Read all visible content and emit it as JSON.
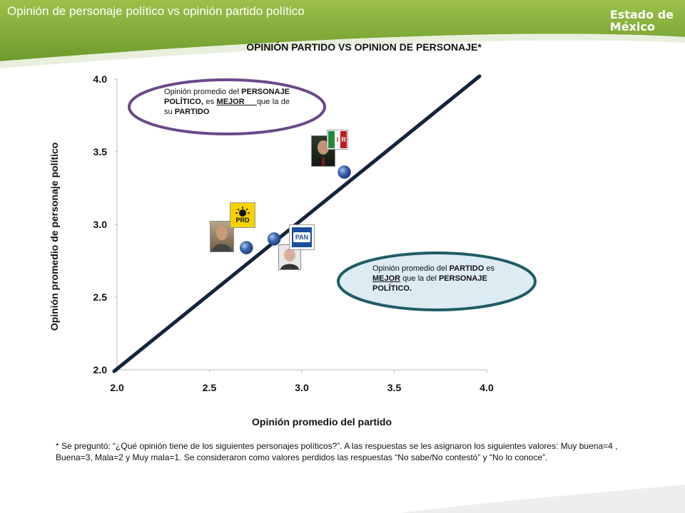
{
  "header": {
    "title": "Opinión de personaje político vs opinión partido político",
    "logo_line1": "Estado de",
    "logo_line2": "México"
  },
  "colors": {
    "header_green": "#8db43a",
    "point_blue": "#3a66b0",
    "line_navy": "#14243e",
    "callout_top_border": "#6b4a8a",
    "callout_bottom_border": "#1f5c66",
    "callout_bottom_fill": "#dcecf2"
  },
  "chart_data": {
    "type": "scatter",
    "title": "OPINIÓN PARTIDO VS OPINION DE PERSONAJE*",
    "xlabel": "Opinión promedio del partido",
    "ylabel": "Opinión promedio de personaje político",
    "xlim": [
      2.0,
      4.0
    ],
    "ylim": [
      2.0,
      4.0
    ],
    "x_ticks": [
      "2.0",
      "2.5",
      "3.0",
      "3.5",
      "4.0"
    ],
    "y_ticks": [
      "2.0",
      "2.5",
      "3.0",
      "3.5",
      "4.0"
    ],
    "grid": false,
    "reference_line": [
      [
        2.0,
        2.0
      ],
      [
        4.0,
        4.0
      ]
    ],
    "points": [
      {
        "x": 2.7,
        "y": 2.84
      },
      {
        "x": 2.85,
        "y": 2.9
      },
      {
        "x": 3.23,
        "y": 3.36
      }
    ]
  },
  "callouts": {
    "top": {
      "t1": "Opinión promedio del ",
      "t2": "PERSONAJE POLÍTICO,",
      "t3": " es ",
      "t4": "MEJOR",
      "t5": "que la de su ",
      "t6": "PARTIDO"
    },
    "bottom": {
      "t1": "Opinión promedio del ",
      "t2": "PARTIDO",
      "t3": " es ",
      "t4": "MEJOR",
      "t5": " que la del ",
      "t6": "PERSONAJE POLÍTICO."
    }
  },
  "party_logos": {
    "prd": "PRD",
    "pan": "PAN",
    "pri_r": "R",
    "pri_i": "I"
  },
  "footnote": "* Se preguntó: “¿Qué opinión tiene de los siguientes personajes políticos?”. A las respuestas se les asignaron los siguientes valores: Muy buena=4 , Buena=3, Mala=2 y Muy mala=1. Se consideraron como valores perdidos las respuestas “No sabe/No contestó” y “No lo conoce”."
}
